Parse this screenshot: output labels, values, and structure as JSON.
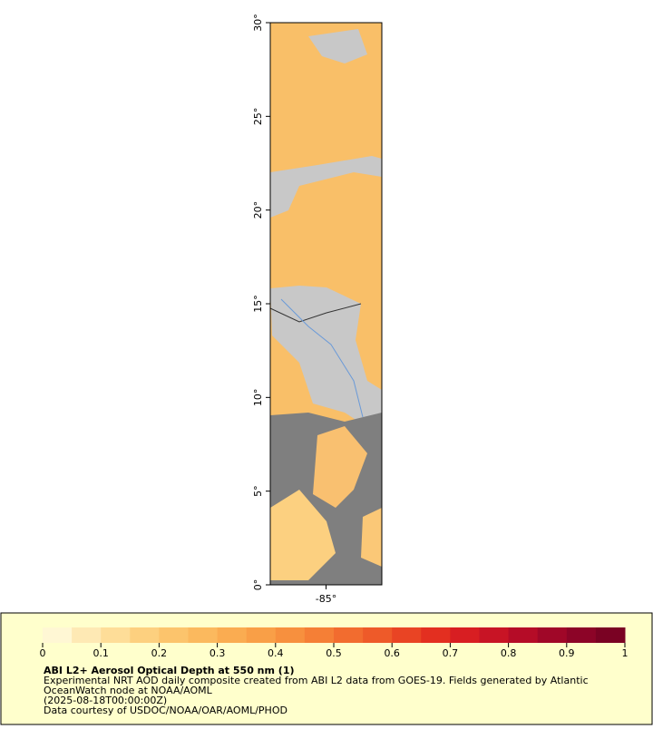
{
  "map": {
    "type": "map",
    "xlim": [
      -88,
      -82
    ],
    "ylim": [
      0,
      30
    ],
    "xticks": [
      {
        "value": -85,
        "label": "-85°"
      }
    ],
    "yticks": [
      {
        "value": 0,
        "label": "0°"
      },
      {
        "value": 5,
        "label": "5°"
      },
      {
        "value": 10,
        "label": "10°"
      },
      {
        "value": 15,
        "label": "15°"
      },
      {
        "value": 20,
        "label": "20°"
      },
      {
        "value": 25,
        "label": "25°"
      },
      {
        "value": 30,
        "label": "30°"
      }
    ]
  },
  "legend": {
    "title": "ABI L2+ Aerosol Optical Depth at 550 nm (1)",
    "lines": [
      "Experimental NRT AOD daily composite created from ABI L2 data from GOES-19. Fields generated by Atlantic",
      "OceanWatch node at NOAA/AOML",
      "(2025-08-18T00:00:00Z)",
      "Data courtesy of USDOC/NOAA/OAR/AOML/PHOD"
    ],
    "lim": [
      0,
      1
    ],
    "ticks": [
      0,
      0.1,
      0.2,
      0.3,
      0.4,
      0.5,
      0.6,
      0.7,
      0.8,
      0.9,
      1
    ],
    "colors": [
      "#fff7d4",
      "#fee9b4",
      "#fedd98",
      "#fdd07f",
      "#fcc46c",
      "#fbb95e",
      "#faac51",
      "#f99f47",
      "#f7903e",
      "#f57f36",
      "#f26c2f",
      "#ee5a29",
      "#e94424",
      "#e32f20",
      "#d81e22",
      "#c81425",
      "#b50c27",
      "#a00728",
      "#8c0427",
      "#7a0223"
    ]
  }
}
